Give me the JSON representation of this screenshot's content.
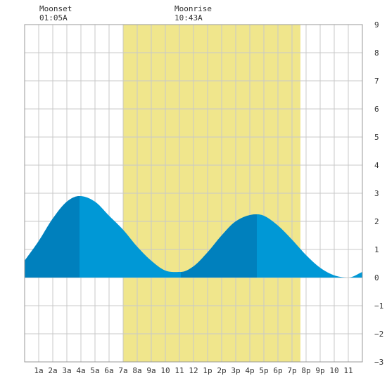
{
  "header": {
    "moonset": {
      "label": "Moonset",
      "time": "01:05A"
    },
    "moonrise": {
      "label": "Moonrise",
      "time": "10:43A"
    }
  },
  "colors": {
    "daylight": "#f0e68c",
    "tide_fill": "#0098d6",
    "tide_fill_dark": "#0080bd",
    "grid": "#c8c8c8",
    "frame": "#999999",
    "background": "#ffffff"
  },
  "chart_data": {
    "type": "area",
    "title": "",
    "xlabel": "",
    "ylabel": "",
    "x_ticks": [
      "1a",
      "2a",
      "3a",
      "4a",
      "5a",
      "6a",
      "7a",
      "8a",
      "9a",
      "10",
      "11",
      "12",
      "1p",
      "2p",
      "3p",
      "4p",
      "5p",
      "6p",
      "7p",
      "8p",
      "9p",
      "10",
      "11"
    ],
    "xlim": [
      0,
      24
    ],
    "ylim": [
      -3,
      9
    ],
    "y_ticks": [
      -3,
      -2,
      -1,
      0,
      1,
      2,
      3,
      4,
      5,
      6,
      7,
      8,
      9
    ],
    "y_axis_side": "right",
    "daylight_hours": [
      7.0,
      19.6
    ],
    "extrema": [
      {
        "type": "high",
        "hour": 3.9,
        "height": 2.9
      },
      {
        "type": "low",
        "hour": 11.1,
        "height": 0.2
      },
      {
        "type": "high",
        "hour": 16.5,
        "height": 2.25
      },
      {
        "type": "low",
        "hour": 23.0,
        "height": 0.0
      }
    ],
    "series": [
      {
        "x": [
          0,
          1,
          2,
          3,
          3.9,
          5,
          6,
          7,
          8,
          9,
          10,
          11.1,
          12,
          13,
          14,
          15,
          16.5,
          17,
          18,
          19,
          20,
          21,
          22,
          23,
          24
        ],
        "values": [
          0.6,
          1.3,
          2.1,
          2.7,
          2.9,
          2.7,
          2.2,
          1.7,
          1.1,
          0.6,
          0.25,
          0.2,
          0.4,
          0.9,
          1.5,
          2.0,
          2.25,
          2.2,
          1.85,
          1.35,
          0.8,
          0.35,
          0.08,
          0.0,
          0.2
        ]
      }
    ],
    "dark_bands": [
      [
        0,
        3.9
      ],
      [
        11.1,
        16.5
      ]
    ],
    "grid": true
  }
}
